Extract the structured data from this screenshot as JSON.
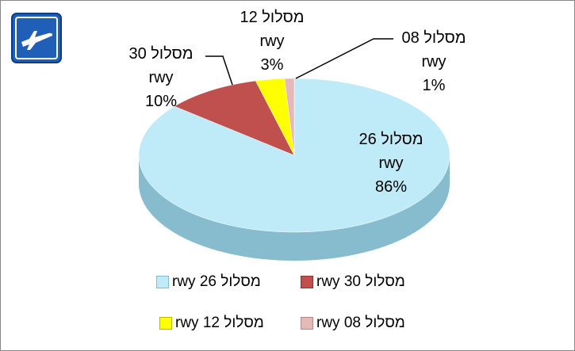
{
  "chart_data": {
    "type": "pie",
    "categories": [
      "מסלול 26 rwy",
      "מסלול 30 rwy",
      "מסלול 12 rwy",
      "מסלול 08 rwy"
    ],
    "values": [
      86,
      10,
      3,
      1
    ],
    "value_labels": [
      "86%",
      "10%",
      "3%",
      "1%"
    ],
    "colors": [
      "#bfeaf8",
      "#c0504d",
      "#ffff00",
      "#e6b9b8"
    ],
    "side_colors": [
      "#86bccd",
      "#8e3533",
      "#b8b800",
      "#b08a89"
    ]
  }
}
